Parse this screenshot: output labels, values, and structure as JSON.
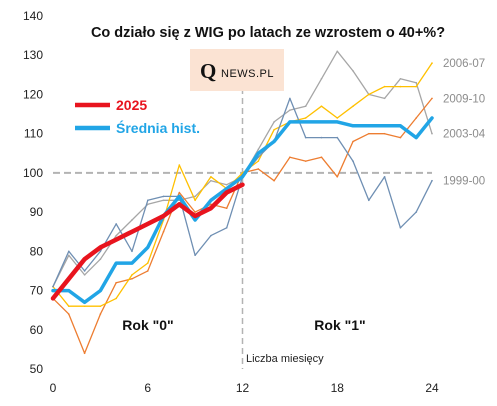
{
  "chart_data": {
    "type": "line",
    "title": "Co działo się z WIG po latach ze wzrostem o 40+%?",
    "xlabel": "Liczba miesięcy",
    "ylabel": "",
    "xlim": [
      0,
      24
    ],
    "ylim": [
      50,
      140
    ],
    "xticks": [
      0,
      6,
      12,
      18,
      24
    ],
    "yticks": [
      50,
      60,
      70,
      80,
      90,
      100,
      110,
      120,
      130,
      140
    ],
    "reference_lines": {
      "x": 12,
      "y": 100
    },
    "region_labels": [
      "Rok \"0\"",
      "Rok \"1\""
    ],
    "logo": {
      "main": "Q",
      "sub": "NEWS.PL"
    },
    "end_labels": [
      "2003-04",
      "2009-10",
      "2006-07",
      "1999-00"
    ],
    "legend": {
      "items": [
        {
          "name": "2025",
          "color": "#e8141e"
        },
        {
          "name": "Średnia hist.",
          "color": "#21a5e6"
        }
      ]
    },
    "series": [
      {
        "name": "2003-04",
        "color": "#a6a6a6",
        "width": 1.3,
        "values": [
          71,
          79,
          74,
          78,
          84,
          88,
          92,
          93,
          93,
          94,
          98,
          97,
          99,
          106,
          113,
          116,
          117,
          124,
          131,
          126,
          120,
          119,
          124,
          123,
          110
        ]
      },
      {
        "name": "2009-10",
        "color": "#ed7d31",
        "width": 1.3,
        "values": [
          68,
          64,
          54,
          64,
          72,
          73,
          75,
          85,
          95,
          90,
          92,
          91,
          100,
          101,
          98,
          104,
          103,
          104,
          99,
          108,
          110,
          110,
          109,
          114,
          119
        ]
      },
      {
        "name": "2006-07",
        "color": "#ffc000",
        "width": 1.3,
        "values": [
          71,
          66,
          66,
          66,
          68,
          74,
          77,
          88,
          102,
          93,
          99,
          96,
          100,
          103,
          111,
          113,
          114,
          117,
          114,
          117,
          120,
          122,
          122,
          122,
          128
        ]
      },
      {
        "name": "1999-00",
        "color": "#6f8fb3",
        "width": 1.3,
        "values": [
          71,
          80,
          75,
          80,
          87,
          80,
          93,
          94,
          94,
          79,
          84,
          86,
          99,
          104,
          108,
          119,
          109,
          109,
          109,
          103,
          93,
          99,
          86,
          90,
          98
        ]
      },
      {
        "name": "Średnia hist.",
        "color": "#21a5e6",
        "width": 3.5,
        "values": [
          70,
          70,
          67,
          70,
          77,
          77,
          81,
          89,
          94,
          88,
          93,
          96,
          99,
          105,
          108,
          113,
          113,
          113,
          113,
          112,
          112,
          112,
          112,
          109,
          114
        ]
      },
      {
        "name": "2025",
        "color": "#e8141e",
        "width": 4.5,
        "values": [
          68,
          73,
          78,
          81,
          83,
          85,
          87,
          89,
          92,
          89,
          91,
          95,
          97
        ]
      }
    ]
  }
}
